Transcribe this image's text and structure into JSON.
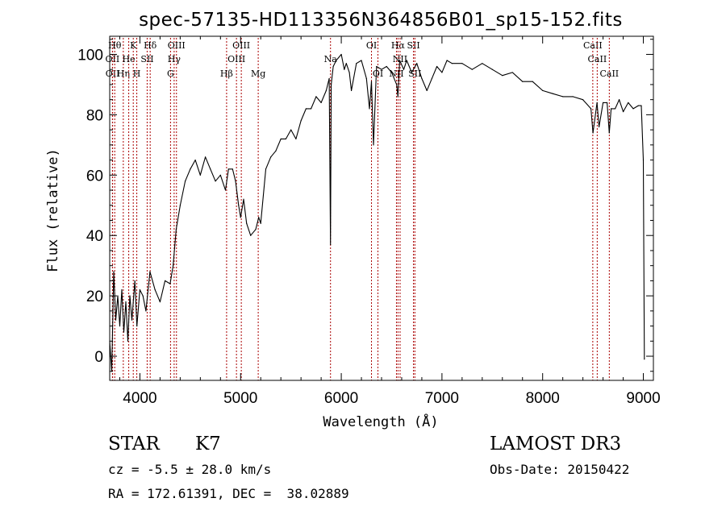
{
  "chart_data": {
    "type": "line",
    "title": "spec-57135-HD113356N364856B01_sp15-152.fits",
    "xlabel": "Wavelength (Å)",
    "ylabel": "Flux (relative)",
    "xlim": [
      3700,
      9100
    ],
    "ylim": [
      -8,
      106
    ],
    "xticks": [
      4000,
      5000,
      6000,
      7000,
      8000,
      9000
    ],
    "yticks": [
      0,
      20,
      40,
      60,
      80,
      100
    ],
    "grid": false,
    "series": [
      {
        "name": "spectrum",
        "x": [
          3700,
          3720,
          3740,
          3760,
          3780,
          3800,
          3820,
          3840,
          3860,
          3880,
          3900,
          3920,
          3950,
          3970,
          4000,
          4030,
          4060,
          4100,
          4150,
          4200,
          4250,
          4300,
          4330,
          4360,
          4400,
          4450,
          4500,
          4550,
          4600,
          4650,
          4700,
          4750,
          4800,
          4850,
          4880,
          4920,
          4950,
          4980,
          5000,
          5030,
          5060,
          5100,
          5150,
          5180,
          5200,
          5250,
          5300,
          5350,
          5400,
          5450,
          5500,
          5550,
          5600,
          5650,
          5700,
          5750,
          5800,
          5850,
          5880,
          5893,
          5900,
          5920,
          5950,
          6000,
          6030,
          6050,
          6080,
          6100,
          6150,
          6200,
          6250,
          6280,
          6300,
          6320,
          6350,
          6400,
          6450,
          6500,
          6550,
          6563,
          6580,
          6620,
          6650,
          6700,
          6750,
          6800,
          6850,
          6900,
          6950,
          7000,
          7050,
          7100,
          7200,
          7300,
          7400,
          7500,
          7600,
          7700,
          7800,
          7900,
          8000,
          8100,
          8200,
          8300,
          8400,
          8480,
          8500,
          8540,
          8560,
          8600,
          8640,
          8662,
          8680,
          8720,
          8760,
          8800,
          8850,
          8900,
          8950,
          8980,
          9000,
          9010
        ],
        "y": [
          5,
          -5,
          28,
          12,
          20,
          10,
          22,
          8,
          18,
          5,
          20,
          12,
          25,
          10,
          22,
          20,
          15,
          28,
          22,
          18,
          25,
          24,
          30,
          42,
          50,
          58,
          62,
          65,
          60,
          66,
          62,
          58,
          60,
          55,
          62,
          62,
          58,
          50,
          46,
          52,
          44,
          40,
          42,
          46,
          44,
          62,
          66,
          68,
          72,
          72,
          75,
          72,
          78,
          82,
          82,
          86,
          84,
          88,
          92,
          37,
          90,
          96,
          98,
          100,
          95,
          97,
          94,
          88,
          97,
          98,
          92,
          82,
          91,
          70,
          96,
          95,
          96,
          94,
          90,
          86,
          98,
          95,
          98,
          94,
          97,
          92,
          88,
          92,
          96,
          94,
          98,
          97,
          97,
          95,
          97,
          95,
          93,
          94,
          91,
          91,
          88,
          87,
          86,
          86,
          85,
          82,
          74,
          84,
          76,
          84,
          84,
          74,
          82,
          82,
          85,
          81,
          84,
          82,
          83,
          83,
          65,
          -1
        ]
      }
    ],
    "lines": [
      {
        "name": "OII",
        "x": 3727,
        "row": 1
      },
      {
        "name": "OII",
        "x": 3729,
        "row": 2
      },
      {
        "name": "Hθ",
        "x": 3750,
        "row": 0
      },
      {
        "name": "Hη",
        "x": 3835,
        "row": 2
      },
      {
        "name": "He",
        "x": 3889,
        "row": 1
      },
      {
        "name": "K",
        "x": 3934,
        "row": 0
      },
      {
        "name": "H",
        "x": 3969,
        "row": 2
      },
      {
        "name": "SII",
        "x": 4072,
        "row": 1
      },
      {
        "name": "Hδ",
        "x": 4102,
        "row": 0
      },
      {
        "name": "G",
        "x": 4304,
        "row": 2
      },
      {
        "name": "Hγ",
        "x": 4340,
        "row": 1
      },
      {
        "name": "OIII",
        "x": 4363,
        "row": 0
      },
      {
        "name": "Hβ",
        "x": 4861,
        "row": 2
      },
      {
        "name": "OIII",
        "x": 4959,
        "row": 1
      },
      {
        "name": "OIII",
        "x": 5007,
        "row": 0
      },
      {
        "name": "Mg",
        "x": 5175,
        "row": 2
      },
      {
        "name": "Na",
        "x": 5893,
        "row": 1
      },
      {
        "name": "OI",
        "x": 6300,
        "row": 0
      },
      {
        "name": "OI",
        "x": 6364,
        "row": 2
      },
      {
        "name": "NII",
        "x": 6548,
        "row": 2
      },
      {
        "name": "Hα",
        "x": 6563,
        "row": 0
      },
      {
        "name": "NII",
        "x": 6584,
        "row": 1
      },
      {
        "name": "SII",
        "x": 6717,
        "row": 0
      },
      {
        "name": "SII",
        "x": 6731,
        "row": 2
      },
      {
        "name": "CaII",
        "x": 8498,
        "row": 0
      },
      {
        "name": "CaII",
        "x": 8542,
        "row": 1
      },
      {
        "name": "CaII",
        "x": 8662,
        "row": 2
      }
    ]
  },
  "info": {
    "object_type": "STAR",
    "subclass": "K7",
    "survey": "LAMOST DR3",
    "redshift": "cz = -5.5 ± 28.0 km/s",
    "obs_date": "Obs-Date: 20150422",
    "coords": "RA = 172.61391, DEC =  38.02889"
  },
  "colors": {
    "axis": "#000000",
    "spectrum": "#000000",
    "line_marker": "#aa0000"
  }
}
